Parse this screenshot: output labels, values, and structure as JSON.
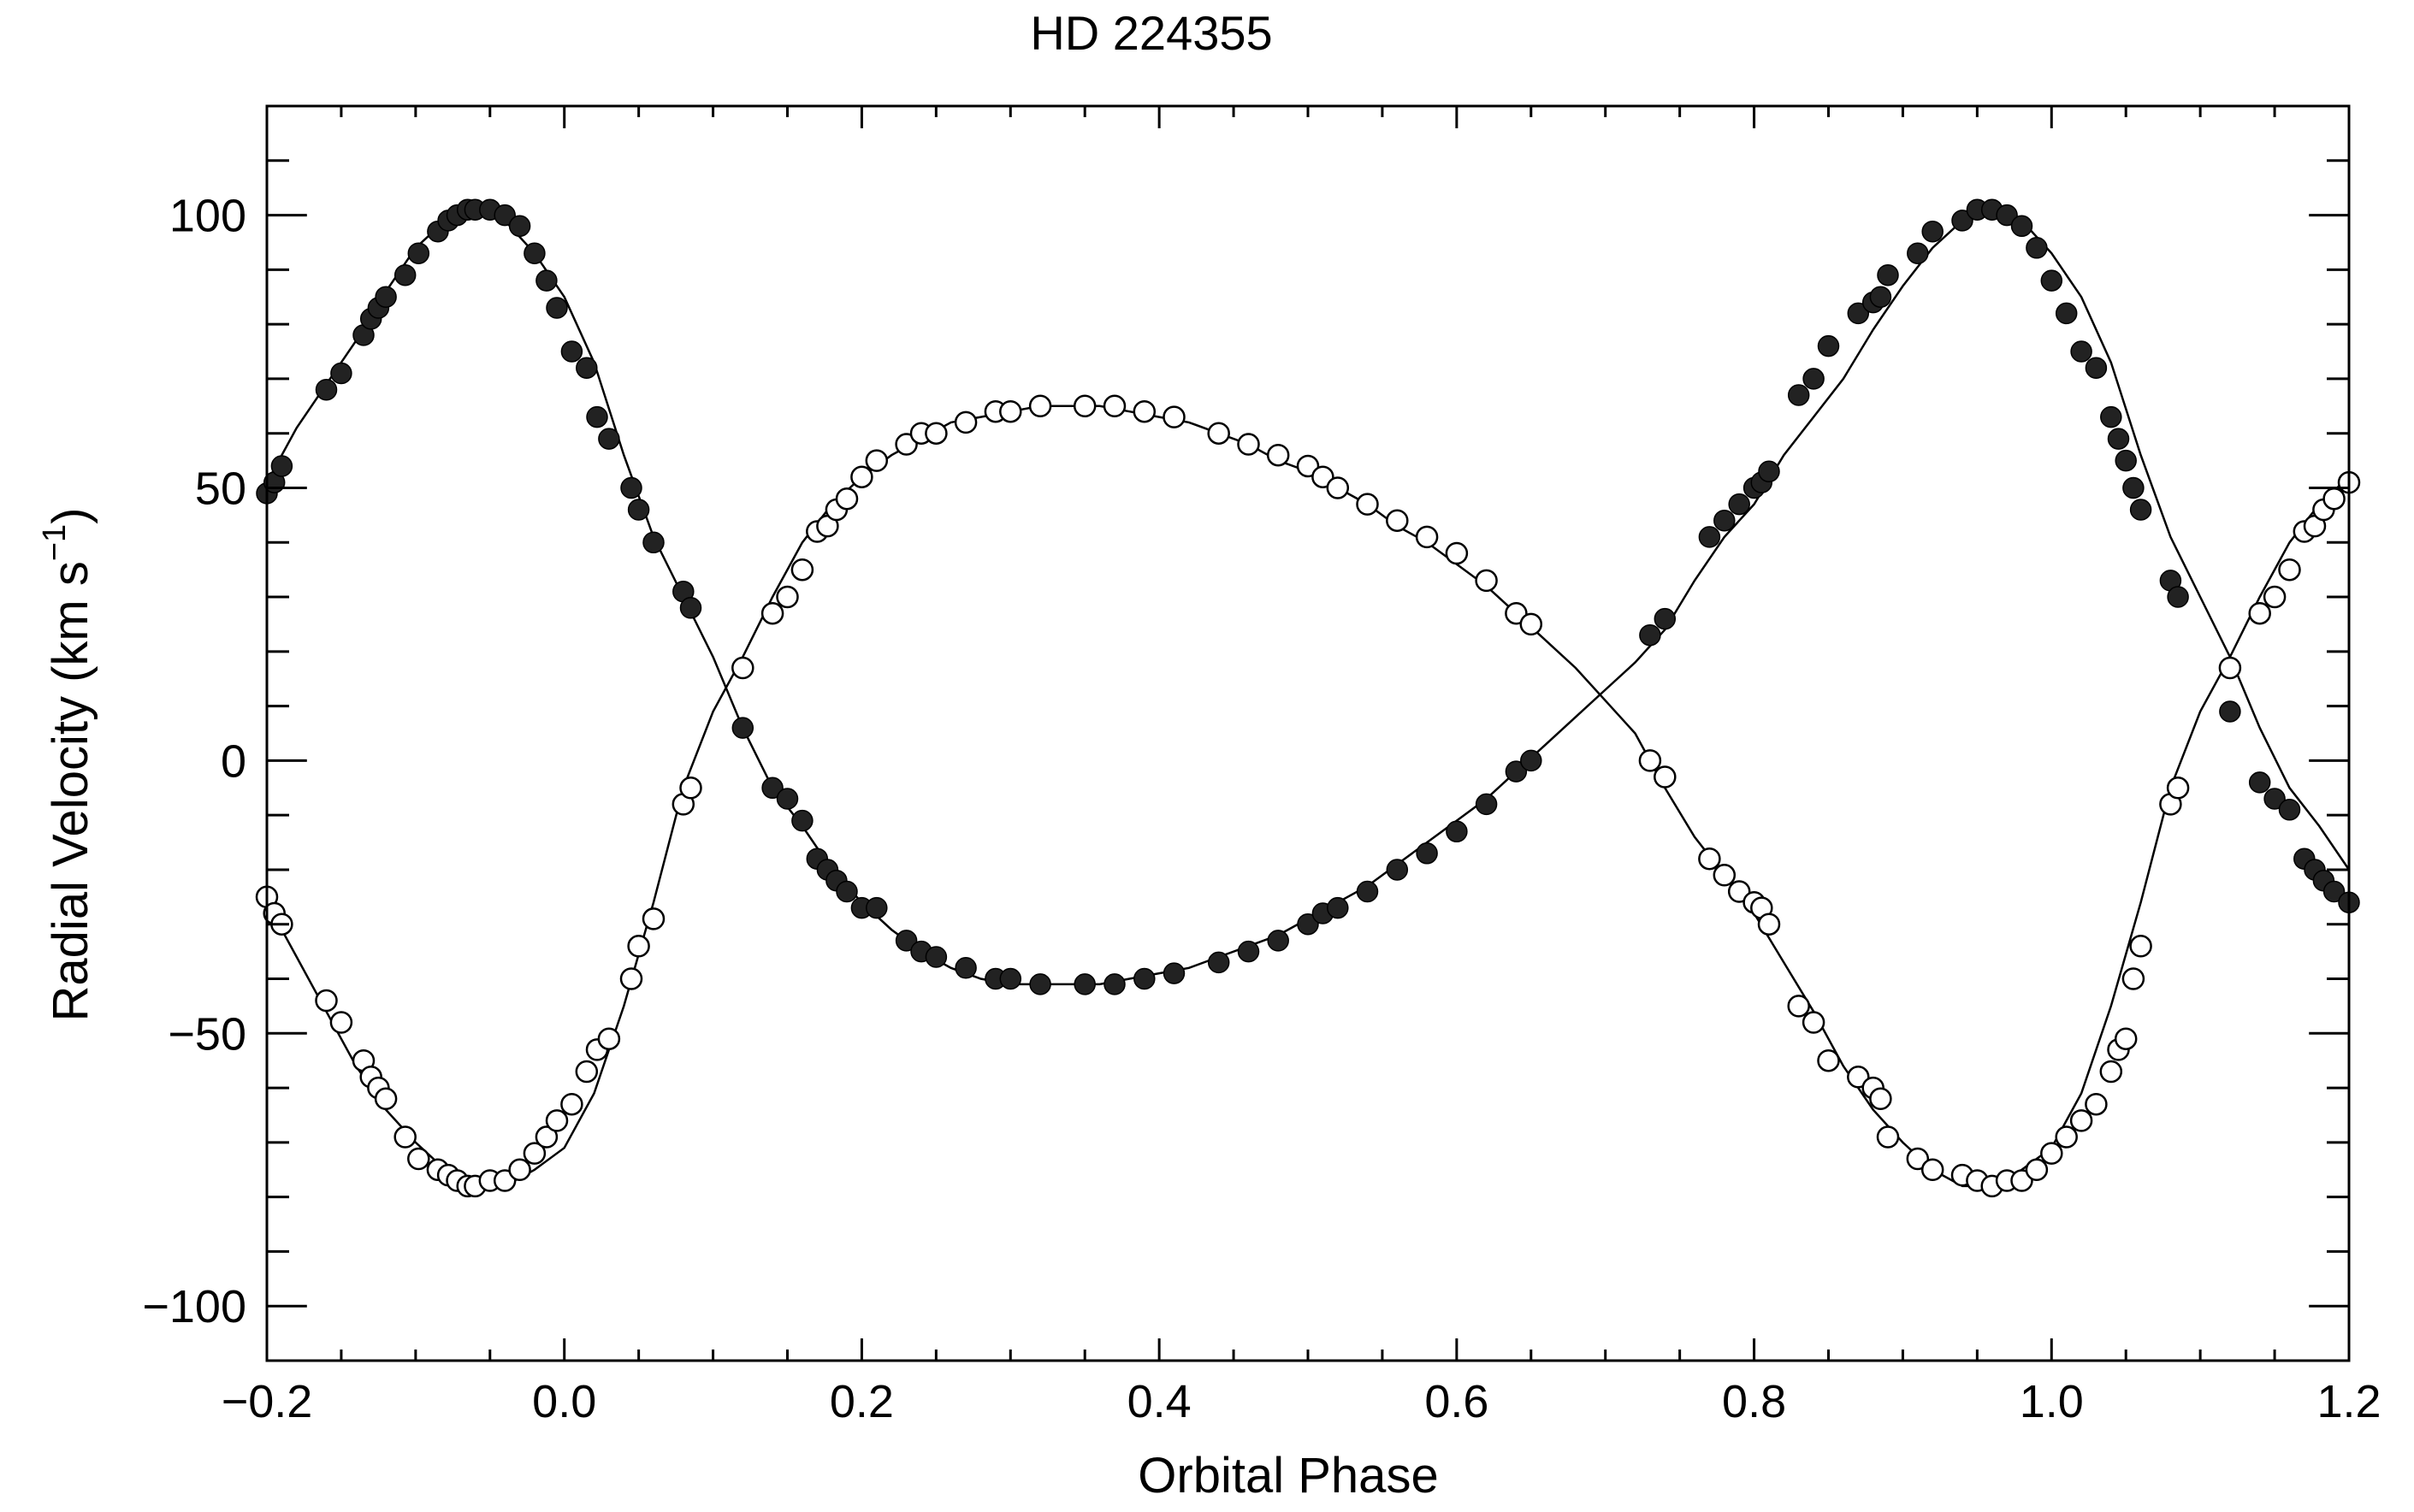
{
  "chart_data": {
    "type": "scatter",
    "title": "HD 224355",
    "xlabel": "Orbital Phase",
    "ylabel_main": "Radial Velocity (km s",
    "ylabel_sup": "−1",
    "ylabel_close": ")",
    "xlim": [
      -0.2,
      1.2
    ],
    "ylim": [
      -110,
      120
    ],
    "x_ticks": [
      -0.2,
      0.0,
      0.2,
      0.4,
      0.6,
      0.8,
      1.0,
      1.2
    ],
    "x_tick_labels": [
      "−0.2",
      "0.0",
      "0.2",
      "0.4",
      "0.6",
      "0.8",
      "1.0",
      "1.2"
    ],
    "x_minor_step": 0.05,
    "y_ticks": [
      -100,
      -50,
      0,
      50,
      100
    ],
    "y_tick_labels": [
      "−100",
      "−50",
      "0",
      "50",
      "100"
    ],
    "y_minor_step": 10,
    "grid": false,
    "legend": "none",
    "colors": {
      "filled": "#222222",
      "open": "#000000",
      "curve": "#000000",
      "axis": "#000000"
    },
    "series": [
      {
        "marker": "filled-circle",
        "x": [
          -0.2,
          -0.195,
          -0.19,
          -0.16,
          -0.15,
          -0.135,
          -0.13,
          -0.125,
          -0.12,
          -0.107,
          -0.098,
          -0.085,
          -0.078,
          -0.072,
          -0.065,
          -0.06,
          -0.05,
          -0.04,
          -0.03,
          -0.02,
          -0.012,
          -0.005,
          0.005,
          0.015,
          0.022,
          0.03,
          0.045,
          0.05,
          0.06,
          0.08,
          0.085,
          0.12,
          0.14,
          0.15,
          0.16,
          0.17,
          0.177,
          0.183,
          0.19,
          0.2,
          0.21,
          0.23,
          0.24,
          0.25,
          0.27,
          0.29,
          0.3,
          0.32,
          0.35,
          0.37,
          0.39,
          0.41,
          0.44,
          0.46,
          0.48,
          0.5,
          0.51,
          0.52,
          0.54,
          0.56,
          0.58,
          0.6,
          0.62,
          0.64,
          0.65,
          0.73,
          0.74,
          0.77,
          0.78,
          0.79,
          0.8,
          0.805,
          0.81,
          0.83,
          0.84,
          0.85,
          0.87,
          0.88,
          0.885,
          0.89,
          0.91,
          0.92,
          0.94,
          0.95,
          0.96,
          0.97,
          0.98,
          0.99,
          1.0,
          1.01,
          1.02,
          1.03,
          1.04,
          1.045,
          1.05,
          1.055,
          1.06,
          1.08,
          1.085,
          1.12,
          1.14,
          1.15,
          1.16,
          1.17,
          1.177,
          1.183,
          1.19,
          1.2
        ],
        "y": [
          49,
          51,
          54,
          68,
          71,
          78,
          81,
          83,
          85,
          89,
          93,
          97,
          99,
          100,
          101,
          101,
          101,
          100,
          98,
          93,
          88,
          83,
          75,
          72,
          63,
          59,
          50,
          46,
          40,
          31,
          28,
          6,
          -5,
          -7,
          -11,
          -18,
          -20,
          -22,
          -24,
          -27,
          -27,
          -33,
          -35,
          -36,
          -38,
          -40,
          -40,
          -41,
          -41,
          -41,
          -40,
          -39,
          -37,
          -35,
          -33,
          -30,
          -28,
          -27,
          -24,
          -20,
          -17,
          -13,
          -8,
          -2,
          0,
          23,
          26,
          41,
          44,
          47,
          50,
          51,
          53,
          67,
          70,
          76,
          82,
          84,
          85,
          89,
          93,
          97,
          99,
          101,
          101,
          100,
          98,
          94,
          88,
          82,
          75,
          72,
          63,
          59,
          55,
          50,
          46,
          33,
          30,
          9,
          -4,
          -7,
          -9,
          -18,
          -20,
          -22,
          -24,
          -26
        ],
        "curve": {
          "x": [
            -0.2,
            -0.18,
            -0.16,
            -0.14,
            -0.12,
            -0.1,
            -0.08,
            -0.06,
            -0.04,
            -0.02,
            0.0,
            0.02,
            0.04,
            0.06,
            0.08,
            0.1,
            0.12,
            0.14,
            0.16,
            0.18,
            0.2,
            0.22,
            0.24,
            0.26,
            0.28,
            0.3,
            0.32,
            0.34,
            0.36,
            0.38,
            0.4,
            0.42,
            0.44,
            0.46,
            0.48,
            0.5,
            0.52,
            0.54,
            0.56,
            0.58,
            0.6,
            0.62,
            0.64,
            0.66,
            0.68,
            0.7,
            0.72,
            0.74,
            0.76,
            0.78,
            0.8,
            0.82,
            0.84,
            0.86,
            0.88,
            0.9,
            0.92,
            0.94,
            0.96,
            0.98,
            1.0,
            1.02,
            1.04,
            1.06,
            1.08,
            1.1,
            1.12,
            1.14,
            1.16,
            1.18,
            1.2
          ],
          "y": [
            51,
            61,
            69,
            77,
            86,
            94,
            99,
            101,
            99,
            93,
            85,
            73,
            56,
            41,
            30,
            19,
            6,
            -5,
            -12,
            -20,
            -26,
            -31,
            -35,
            -38,
            -40,
            -41,
            -41,
            -41,
            -41,
            -40,
            -39,
            -38,
            -36,
            -34,
            -32,
            -29,
            -26,
            -23,
            -19,
            -15,
            -11,
            -7,
            -2,
            3,
            8,
            13,
            18,
            24,
            33,
            41,
            47,
            56,
            63,
            70,
            79,
            87,
            94,
            99,
            101,
            99,
            93,
            85,
            73,
            56,
            41,
            30,
            19,
            6,
            -5,
            -12,
            -20
          ]
        }
      },
      {
        "marker": "open-circle",
        "x": [
          -0.2,
          -0.195,
          -0.19,
          -0.16,
          -0.15,
          -0.135,
          -0.13,
          -0.125,
          -0.12,
          -0.107,
          -0.098,
          -0.085,
          -0.078,
          -0.072,
          -0.065,
          -0.06,
          -0.05,
          -0.04,
          -0.03,
          -0.02,
          -0.012,
          -0.005,
          0.005,
          0.015,
          0.022,
          0.03,
          0.045,
          0.05,
          0.06,
          0.08,
          0.085,
          0.12,
          0.14,
          0.15,
          0.16,
          0.17,
          0.177,
          0.183,
          0.19,
          0.2,
          0.21,
          0.23,
          0.24,
          0.25,
          0.27,
          0.29,
          0.3,
          0.32,
          0.35,
          0.37,
          0.39,
          0.41,
          0.44,
          0.46,
          0.48,
          0.5,
          0.51,
          0.52,
          0.54,
          0.56,
          0.58,
          0.6,
          0.62,
          0.64,
          0.65,
          0.73,
          0.74,
          0.77,
          0.78,
          0.79,
          0.8,
          0.805,
          0.81,
          0.83,
          0.84,
          0.85,
          0.87,
          0.88,
          0.885,
          0.89,
          0.91,
          0.92,
          0.94,
          0.95,
          0.96,
          0.97,
          0.98,
          0.99,
          1.0,
          1.01,
          1.02,
          1.03,
          1.04,
          1.045,
          1.05,
          1.055,
          1.06,
          1.08,
          1.085,
          1.12,
          1.14,
          1.15,
          1.16,
          1.17,
          1.177,
          1.183,
          1.19,
          1.2
        ],
        "y": [
          -25,
          -28,
          -30,
          -44,
          -48,
          -55,
          -58,
          -60,
          -62,
          -69,
          -73,
          -75,
          -76,
          -77,
          -78,
          -78,
          -77,
          -77,
          -75,
          -72,
          -69,
          -66,
          -63,
          -57,
          -53,
          -51,
          -40,
          -34,
          -29,
          -8,
          -5,
          17,
          27,
          30,
          35,
          42,
          43,
          46,
          48,
          52,
          55,
          58,
          60,
          60,
          62,
          64,
          64,
          65,
          65,
          65,
          64,
          63,
          60,
          58,
          56,
          54,
          52,
          50,
          47,
          44,
          41,
          38,
          33,
          27,
          25,
          0,
          -3,
          -18,
          -21,
          -24,
          -26,
          -27,
          -30,
          -45,
          -48,
          -55,
          -58,
          -60,
          -62,
          -69,
          -73,
          -75,
          -76,
          -77,
          -78,
          -77,
          -77,
          -75,
          -72,
          -69,
          -66,
          -63,
          -57,
          -53,
          -51,
          -40,
          -34,
          -8,
          -5,
          17,
          27,
          30,
          35,
          42,
          43,
          46,
          48,
          51
        ],
        "curve": {
          "x": [
            -0.2,
            -0.18,
            -0.16,
            -0.14,
            -0.12,
            -0.1,
            -0.08,
            -0.06,
            -0.04,
            -0.02,
            0.0,
            0.02,
            0.04,
            0.06,
            0.08,
            0.1,
            0.12,
            0.14,
            0.16,
            0.18,
            0.2,
            0.22,
            0.24,
            0.26,
            0.28,
            0.3,
            0.32,
            0.34,
            0.36,
            0.38,
            0.4,
            0.42,
            0.44,
            0.46,
            0.48,
            0.5,
            0.52,
            0.54,
            0.56,
            0.58,
            0.6,
            0.62,
            0.64,
            0.66,
            0.68,
            0.7,
            0.72,
            0.74,
            0.76,
            0.78,
            0.8,
            0.82,
            0.84,
            0.86,
            0.88,
            0.9,
            0.92,
            0.94,
            0.96,
            0.98,
            1.0,
            1.02,
            1.04,
            1.06,
            1.08,
            1.1,
            1.12,
            1.14,
            1.16,
            1.18,
            1.2
          ],
          "y": [
            -26,
            -36,
            -46,
            -56,
            -64,
            -70,
            -75,
            -78,
            -78,
            -75,
            -71,
            -61,
            -45,
            -26,
            -5,
            9,
            19,
            30,
            40,
            47,
            52,
            56,
            59,
            62,
            63,
            64,
            65,
            65,
            65,
            64,
            63,
            62,
            60,
            58,
            55,
            53,
            50,
            47,
            43,
            40,
            36,
            32,
            27,
            22,
            17,
            11,
            5,
            -5,
            -14,
            -21,
            -28,
            -37,
            -46,
            -56,
            -64,
            -70,
            -75,
            -78,
            -78,
            -75,
            -71,
            -61,
            -45,
            -26,
            -5,
            9,
            19,
            30,
            40,
            47,
            52
          ]
        }
      }
    ]
  }
}
